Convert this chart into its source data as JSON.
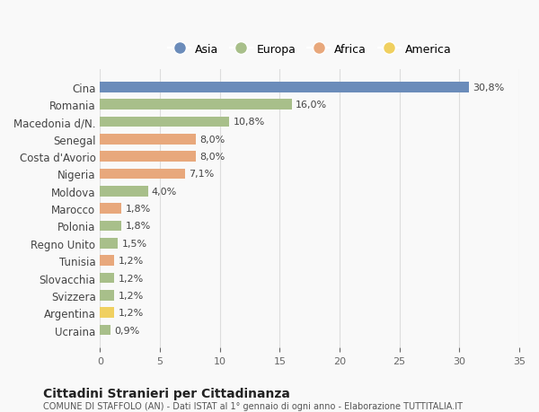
{
  "countries": [
    "Cina",
    "Romania",
    "Macedonia d/N.",
    "Senegal",
    "Costa d'Avorio",
    "Nigeria",
    "Moldova",
    "Marocco",
    "Polonia",
    "Regno Unito",
    "Tunisia",
    "Slovacchia",
    "Svizzera",
    "Argentina",
    "Ucraina"
  ],
  "values": [
    30.8,
    16.0,
    10.8,
    8.0,
    8.0,
    7.1,
    4.0,
    1.8,
    1.8,
    1.5,
    1.2,
    1.2,
    1.2,
    1.2,
    0.9
  ],
  "labels": [
    "30,8%",
    "16,0%",
    "10,8%",
    "8,0%",
    "8,0%",
    "7,1%",
    "4,0%",
    "1,8%",
    "1,8%",
    "1,5%",
    "1,2%",
    "1,2%",
    "1,2%",
    "1,2%",
    "0,9%"
  ],
  "continents": [
    "Asia",
    "Europa",
    "Europa",
    "Africa",
    "Africa",
    "Africa",
    "Europa",
    "Africa",
    "Europa",
    "Europa",
    "Africa",
    "Europa",
    "Europa",
    "America",
    "Europa"
  ],
  "colors": {
    "Asia": "#6b8cba",
    "Europa": "#a8bf8a",
    "Africa": "#e8a87c",
    "America": "#f0d060"
  },
  "legend_order": [
    "Asia",
    "Europa",
    "Africa",
    "America"
  ],
  "title": "Cittadini Stranieri per Cittadinanza",
  "subtitle": "COMUNE DI STAFFOLO (AN) - Dati ISTAT al 1° gennaio di ogni anno - Elaborazione TUTTITALIA.IT",
  "xlim": [
    0,
    35
  ],
  "xticks": [
    0,
    5,
    10,
    15,
    20,
    25,
    30,
    35
  ],
  "background_color": "#f9f9f9",
  "grid_color": "#dddddd"
}
